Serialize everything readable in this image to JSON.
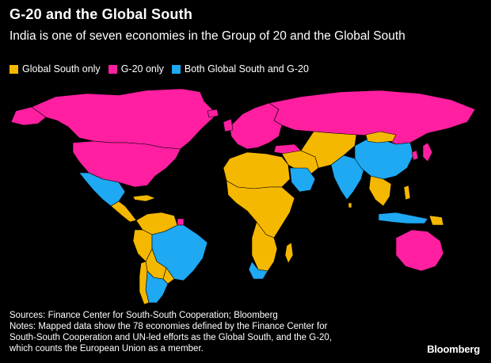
{
  "header": {
    "title": "G-20 and the Global South",
    "subtitle": "India is one of seven economies in the Group of 20 and the Global South"
  },
  "legend": {
    "items": [
      {
        "label": "Global South only",
        "color": "#f5b800"
      },
      {
        "label": "G-20 only",
        "color": "#ff1fa0"
      },
      {
        "label": "Both Global South and G-20",
        "color": "#1ea9f2"
      }
    ]
  },
  "footer": {
    "sources": "Sources: Finance Center for South-South Cooperation; Bloomberg",
    "notes_1": "Notes: Mapped data show the 78 economies defined by the Finance Center for",
    "notes_2": "South-South Cooperation and UN-led efforts as the Global South, and the G-20,",
    "notes_3": "which counts the European Union as a member.",
    "brand": "Bloomberg"
  },
  "colors": {
    "global_south_only": "#f5b800",
    "g20_only": "#ff1fa0",
    "both": "#1ea9f2",
    "other": "#000000",
    "border": "#000000"
  }
}
